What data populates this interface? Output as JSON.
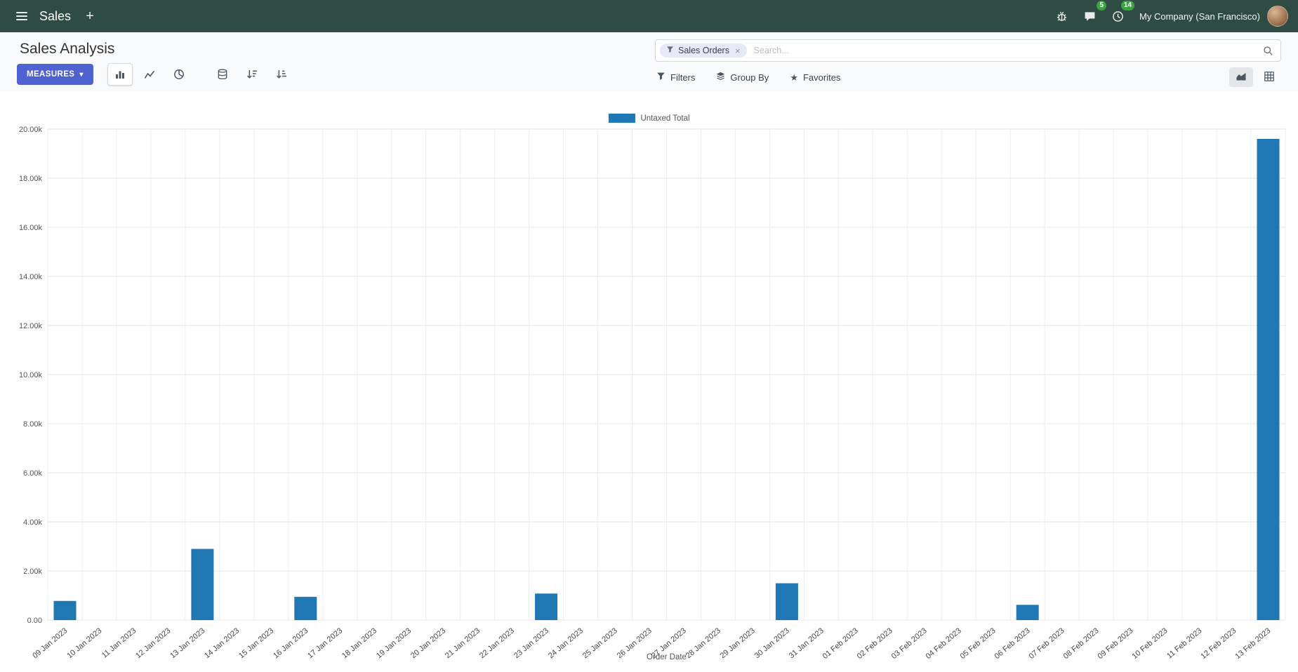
{
  "colors": {
    "navbar_bg": "#2e4c43",
    "primary_button": "#5062cf",
    "badge_green": "#3fa142",
    "bar_color": "#1f77b4"
  },
  "navbar": {
    "app_name": "Sales",
    "company": "My Company (San Francisco)",
    "messages_count": "5",
    "activities_count": "14"
  },
  "icons": {
    "plus": "+",
    "caret_down": "▾",
    "close": "×",
    "star": "★"
  },
  "control_panel": {
    "title": "Sales Analysis",
    "measures_label": "MEASURES",
    "search": {
      "facet_label": "Sales Orders",
      "placeholder": "Search..."
    },
    "filters_label": "Filters",
    "group_by_label": "Group By",
    "favorites_label": "Favorites"
  },
  "chart_data": {
    "type": "bar",
    "legend": "Untaxed Total",
    "xlabel": "Order Date",
    "ylabel": "",
    "ylim": [
      0,
      20000
    ],
    "ytick_step": 2000,
    "bar_color": "#1f77b4",
    "grid": true,
    "legend_position": "top-center",
    "categories": [
      "09 Jan 2023",
      "10 Jan 2023",
      "11 Jan 2023",
      "12 Jan 2023",
      "13 Jan 2023",
      "14 Jan 2023",
      "15 Jan 2023",
      "16 Jan 2023",
      "17 Jan 2023",
      "18 Jan 2023",
      "19 Jan 2023",
      "20 Jan 2023",
      "21 Jan 2023",
      "22 Jan 2023",
      "23 Jan 2023",
      "24 Jan 2023",
      "25 Jan 2023",
      "26 Jan 2023",
      "27 Jan 2023",
      "28 Jan 2023",
      "29 Jan 2023",
      "30 Jan 2023",
      "31 Jan 2023",
      "01 Feb 2023",
      "02 Feb 2023",
      "03 Feb 2023",
      "04 Feb 2023",
      "05 Feb 2023",
      "06 Feb 2023",
      "07 Feb 2023",
      "08 Feb 2023",
      "09 Feb 2023",
      "10 Feb 2023",
      "11 Feb 2023",
      "12 Feb 2023",
      "13 Feb 2023"
    ],
    "values": [
      780,
      0,
      0,
      0,
      2900,
      0,
      0,
      950,
      0,
      0,
      0,
      0,
      0,
      0,
      1080,
      0,
      0,
      0,
      0,
      0,
      0,
      1500,
      0,
      0,
      0,
      0,
      0,
      0,
      620,
      0,
      0,
      0,
      0,
      0,
      0,
      19600
    ]
  }
}
